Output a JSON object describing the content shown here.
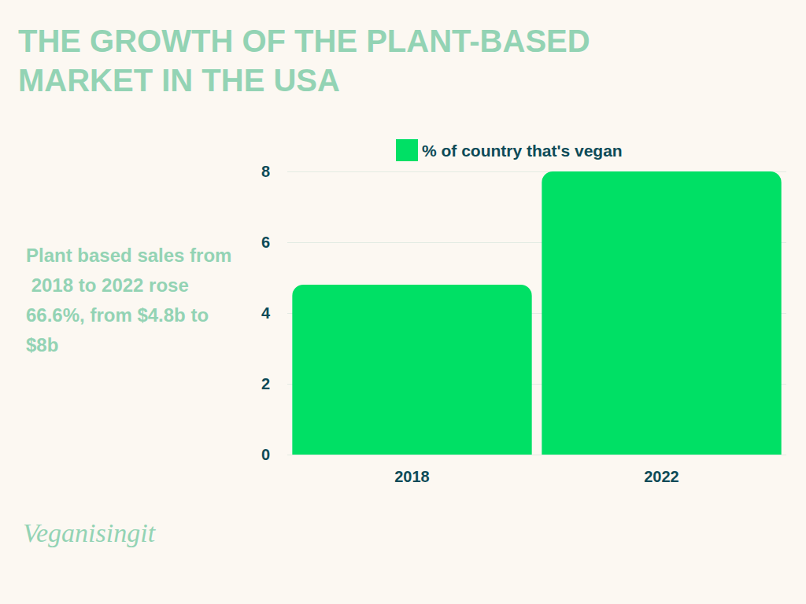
{
  "chart_data": {
    "type": "bar",
    "title": "THE GROWTH OF THE PLANT-BASED MARKET IN THE USA",
    "categories": [
      "2018",
      "2022"
    ],
    "series": [
      {
        "name": "% of country that's vegan",
        "color": "#00e065",
        "values": [
          4.8,
          8
        ]
      }
    ],
    "ylim": [
      0,
      8
    ],
    "yticks": [
      0,
      2,
      4,
      6,
      8
    ],
    "grid": true,
    "legend": "top",
    "annotations": [
      "Plant based sales from 2018 to 2022 rose 66.6%, from $4.8b to $8b",
      "Veganisingit"
    ]
  }
}
